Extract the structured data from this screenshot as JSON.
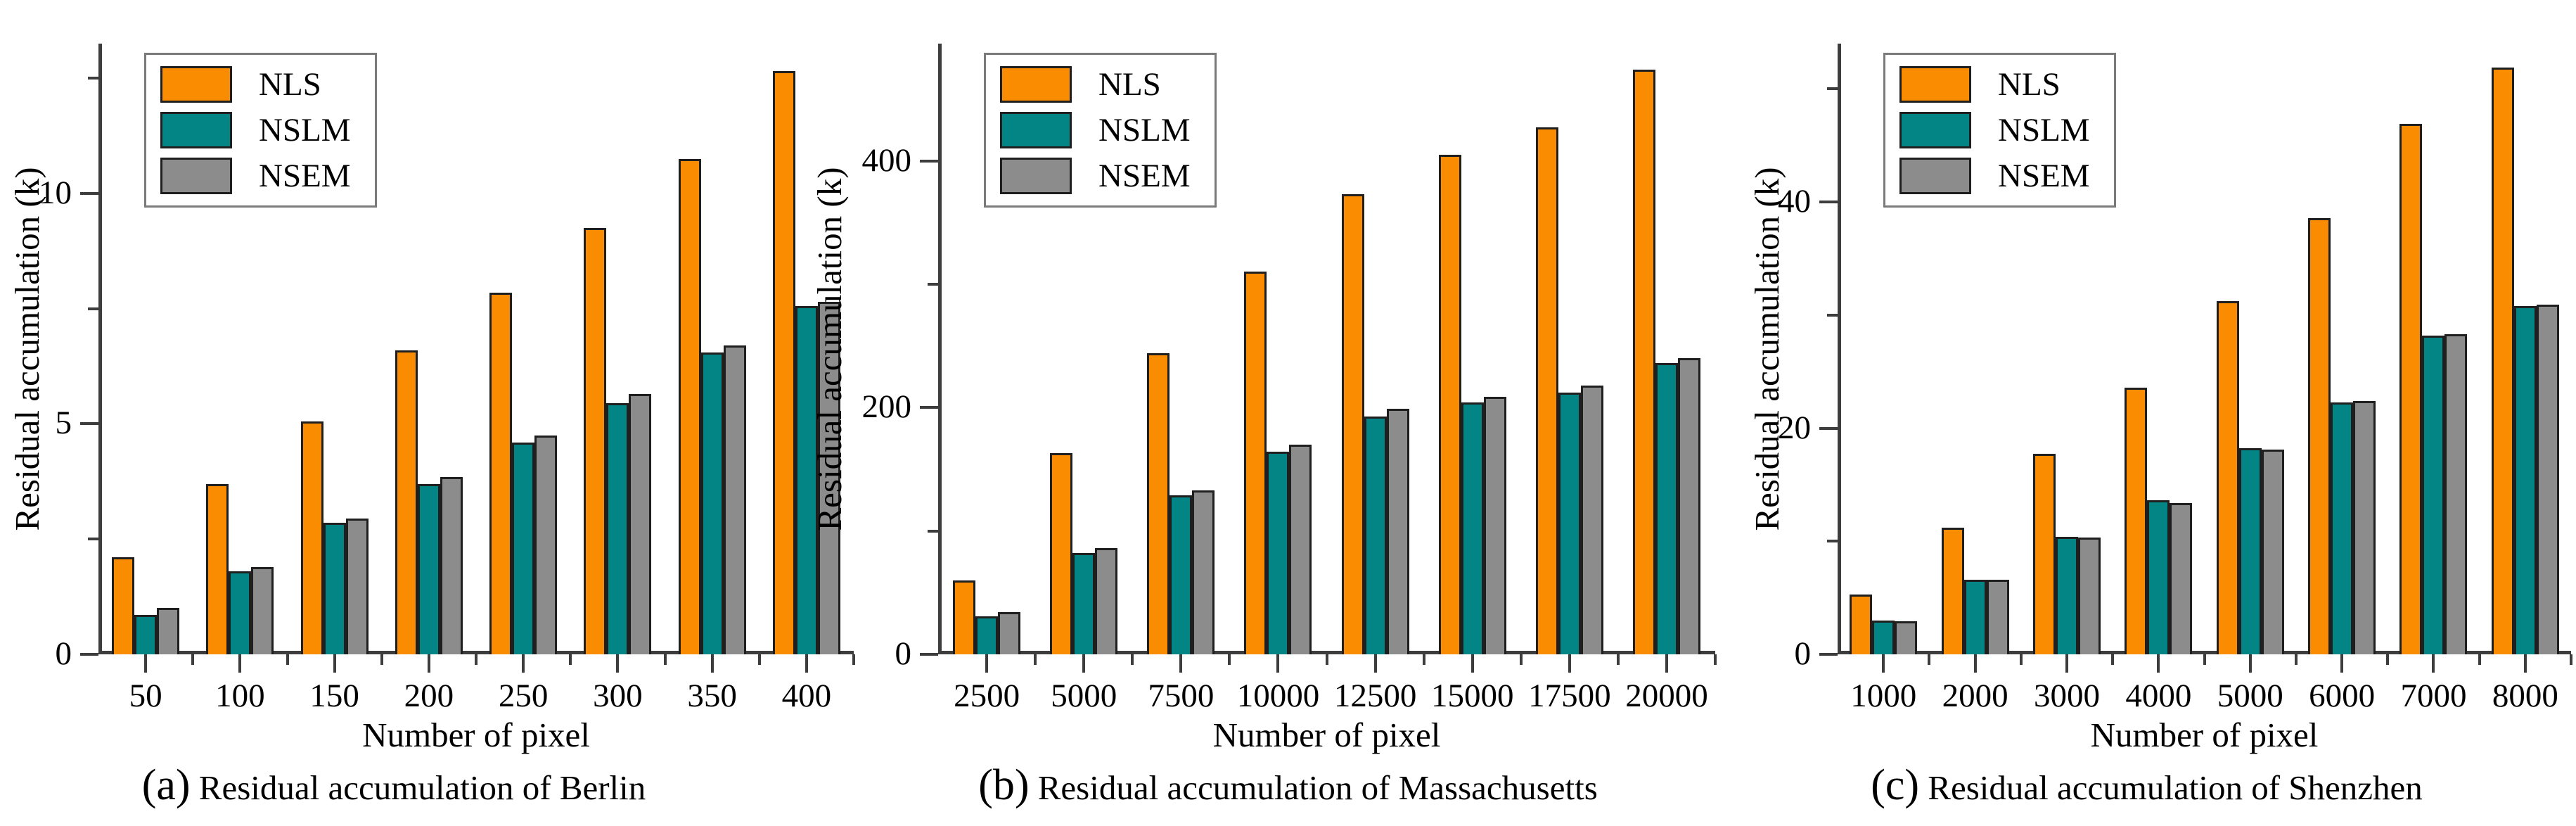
{
  "figure": {
    "background": "#ffffff",
    "axis_color": "#3d3d3d",
    "text_color": "#000000"
  },
  "chart_data": [
    {
      "type": "bar",
      "caption_prefix": "(a)",
      "caption_text": "Residual accumulation of Berlin",
      "xlabel": "Number of pixel",
      "ylabel": "Residual accumulation (k)",
      "categories": [
        "50",
        "100",
        "150",
        "200",
        "250",
        "300",
        "350",
        "400"
      ],
      "series": [
        {
          "name": "NLS",
          "color": "#F98C00",
          "values": [
            2.1,
            3.7,
            5.05,
            6.6,
            7.85,
            9.25,
            10.75,
            12.65
          ]
        },
        {
          "name": "NSLM",
          "color": "#038585",
          "values": [
            0.85,
            1.8,
            2.85,
            3.7,
            4.6,
            5.45,
            6.55,
            7.55
          ]
        },
        {
          "name": "NSEM",
          "color": "#8C8C8C",
          "values": [
            1.0,
            1.9,
            2.95,
            3.85,
            4.75,
            5.65,
            6.7,
            7.65
          ]
        }
      ],
      "ylim": [
        0,
        13.25
      ],
      "y_major_ticks": [
        {
          "value": 0,
          "label": "0"
        },
        {
          "value": 5,
          "label": "5"
        },
        {
          "value": 10,
          "label": "10"
        }
      ],
      "y_minor_ticks": [
        2.5,
        7.5,
        12.5
      ],
      "legend_position": "top-left",
      "grid": false
    },
    {
      "type": "bar",
      "caption_prefix": "(b)",
      "caption_text": "Residual accumulation of Massachusetts",
      "xlabel": "Number of pixel",
      "ylabel": "Residual accumulation (k)",
      "categories": [
        "2500",
        "5000",
        "7500",
        "10000",
        "12500",
        "15000",
        "17500",
        "20000"
      ],
      "series": [
        {
          "name": "NLS",
          "color": "#F98C00",
          "values": [
            60,
            163,
            244,
            310,
            373,
            405,
            427,
            474
          ]
        },
        {
          "name": "NSLM",
          "color": "#038585",
          "values": [
            31,
            82,
            129,
            164,
            193,
            204,
            212,
            236
          ]
        },
        {
          "name": "NSEM",
          "color": "#8C8C8C",
          "values": [
            34,
            86,
            133,
            170,
            199,
            209,
            218,
            240
          ]
        }
      ],
      "ylim": [
        0,
        495
      ],
      "y_major_ticks": [
        {
          "value": 0,
          "label": "0"
        },
        {
          "value": 200,
          "label": "200"
        },
        {
          "value": 400,
          "label": "400"
        }
      ],
      "y_minor_ticks": [
        100,
        300
      ],
      "legend_position": "top-left",
      "grid": false
    },
    {
      "type": "bar",
      "caption_prefix": "(c)",
      "caption_text": "Residual accumulation of Shenzhen",
      "xlabel": "Number of pixel",
      "ylabel": "Residual accumulation (k)",
      "categories": [
        "1000",
        "2000",
        "3000",
        "4000",
        "5000",
        "6000",
        "7000",
        "8000"
      ],
      "series": [
        {
          "name": "NLS",
          "color": "#F98C00",
          "values": [
            5.3,
            11.2,
            17.7,
            23.6,
            31.2,
            38.6,
            46.9,
            51.9
          ]
        },
        {
          "name": "NSLM",
          "color": "#038585",
          "values": [
            3.0,
            6.6,
            10.4,
            13.6,
            18.2,
            22.3,
            28.2,
            30.8
          ]
        },
        {
          "name": "NSEM",
          "color": "#8C8C8C",
          "values": [
            2.9,
            6.6,
            10.3,
            13.4,
            18.1,
            22.4,
            28.3,
            30.9
          ]
        }
      ],
      "ylim": [
        0,
        54
      ],
      "y_major_ticks": [
        {
          "value": 0,
          "label": "0"
        },
        {
          "value": 20,
          "label": "20"
        },
        {
          "value": 40,
          "label": "40"
        }
      ],
      "y_minor_ticks": [
        10,
        30,
        50
      ],
      "legend_position": "top-left",
      "grid": false
    }
  ]
}
